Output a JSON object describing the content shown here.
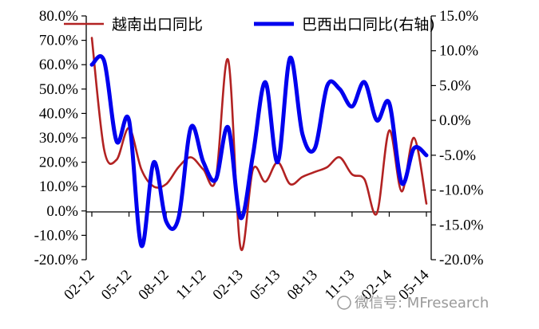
{
  "chart_data": {
    "type": "line",
    "categories": [
      "02-12",
      "03-12",
      "04-12",
      "05-12",
      "06-12",
      "07-12",
      "08-12",
      "09-12",
      "10-12",
      "11-12",
      "12-12",
      "01-13",
      "02-13",
      "03-13",
      "04-13",
      "05-13",
      "06-13",
      "07-13",
      "08-13",
      "09-13",
      "10-13",
      "11-13",
      "12-13",
      "01-14",
      "02-14",
      "03-14",
      "04-14",
      "05-14"
    ],
    "x_tick_labels": [
      "02-12",
      "05-12",
      "08-12",
      "11-12",
      "02-13",
      "05-13",
      "08-13",
      "11-13",
      "02-14",
      "05-14"
    ],
    "y_left": {
      "ticks": [
        "80.0%",
        "70.0%",
        "60.0%",
        "50.0%",
        "40.0%",
        "30.0%",
        "20.0%",
        "10.0%",
        "0.0%",
        "-10.0%",
        "-20.0%"
      ],
      "ylim": [
        -20,
        80
      ]
    },
    "y_right": {
      "ticks": [
        "15.0%",
        "10.0%",
        "5.0%",
        "0.0%",
        "-5.0%",
        "-10.0%",
        "-15.0%",
        "-20.0%"
      ],
      "ylim": [
        -20,
        15
      ]
    },
    "series": [
      {
        "name": "越南出口同比",
        "axis": "left",
        "color": "#b22222",
        "values": [
          71,
          25,
          21,
          34,
          17,
          10,
          11,
          18,
          22,
          17,
          13,
          62,
          -15,
          17,
          12,
          20,
          11,
          14,
          16,
          18,
          22,
          15,
          13,
          -1,
          33,
          8,
          30,
          3
        ]
      },
      {
        "name": "巴西出口同比(右轴)",
        "axis": "right",
        "color": "#0000ee",
        "values": [
          8,
          8.5,
          -3,
          0,
          -18,
          -6,
          -14.5,
          -14,
          -1,
          -6,
          -8.5,
          -1,
          -14,
          -5,
          5.5,
          -6,
          9,
          -2,
          -4,
          5,
          4.5,
          2,
          5.5,
          0,
          2.5,
          -9,
          -4,
          -5
        ]
      }
    ],
    "legend": {
      "position": "top",
      "entries": [
        "越南出口同比",
        "巴西出口同比(右轴)"
      ]
    }
  },
  "watermark": "微信号: MFresearch"
}
